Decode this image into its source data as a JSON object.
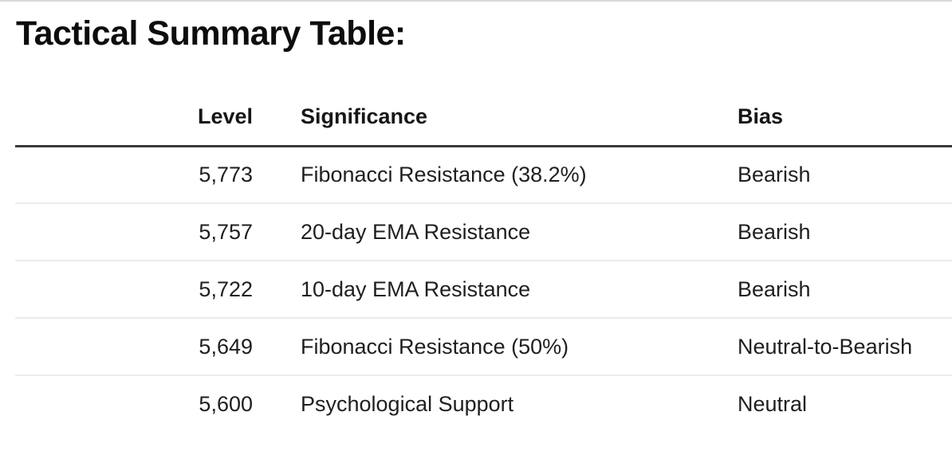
{
  "page": {
    "title": "Tactical Summary Table:"
  },
  "table": {
    "columns": [
      {
        "key": "level",
        "label": "Level"
      },
      {
        "key": "significance",
        "label": "Significance"
      },
      {
        "key": "bias",
        "label": "Bias"
      }
    ],
    "rows": [
      {
        "level": "5,773",
        "significance": "Fibonacci Resistance (38.2%)",
        "bias": "Bearish"
      },
      {
        "level": "5,757",
        "significance": "20-day EMA Resistance",
        "bias": "Bearish"
      },
      {
        "level": "5,722",
        "significance": "10-day EMA Resistance",
        "bias": "Bearish"
      },
      {
        "level": "5,649",
        "significance": "Fibonacci Resistance (50%)",
        "bias": "Neutral-to-Bearish"
      },
      {
        "level": "5,600",
        "significance": "Psychological Support",
        "bias": "Neutral"
      }
    ]
  },
  "colors": {
    "header_rule": "#3a3a3a",
    "row_divider": "#ececec",
    "page_top_divider": "#d8d8d8",
    "title_text": "#0d0d0d",
    "body_text": "#1f1f1f",
    "background": "#ffffff"
  }
}
